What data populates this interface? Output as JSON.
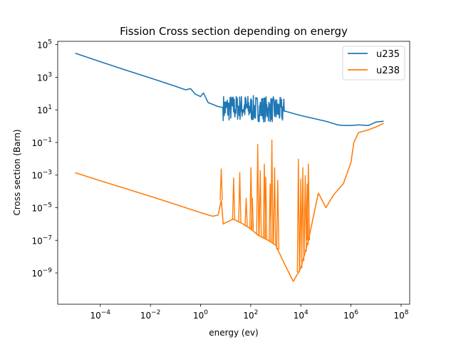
{
  "chart_data": {
    "type": "line",
    "title": "Fission Cross section depending on energy",
    "xlabel": "energy (ev)",
    "ylabel": "Cross section (Barn)",
    "xscale": "log",
    "yscale": "log",
    "xlim": [
      2e-06,
      220000000.0
    ],
    "ylim": [
      1.2e-11,
      160000.0
    ],
    "x_ticks": [
      {
        "value": 0.0001,
        "base": "10",
        "exp": "−4"
      },
      {
        "value": 0.01,
        "base": "10",
        "exp": "−2"
      },
      {
        "value": 1.0,
        "base": "10",
        "exp": "0"
      },
      {
        "value": 100.0,
        "base": "10",
        "exp": "2"
      },
      {
        "value": 10000.0,
        "base": "10",
        "exp": "4"
      },
      {
        "value": 1000000.0,
        "base": "10",
        "exp": "6"
      },
      {
        "value": 100000000.0,
        "base": "10",
        "exp": "8"
      }
    ],
    "y_ticks": [
      {
        "value": 1e-09,
        "base": "10",
        "exp": "−9"
      },
      {
        "value": 1e-07,
        "base": "10",
        "exp": "−7"
      },
      {
        "value": 1e-05,
        "base": "10",
        "exp": "−5"
      },
      {
        "value": 0.001,
        "base": "10",
        "exp": "−3"
      },
      {
        "value": 0.1,
        "base": "10",
        "exp": "−1"
      },
      {
        "value": 10.0,
        "base": "10",
        "exp": "1"
      },
      {
        "value": 1000.0,
        "base": "10",
        "exp": "3"
      },
      {
        "value": 100000.0,
        "base": "10",
        "exp": "5"
      }
    ],
    "legend_position": "top-right",
    "series": [
      {
        "name": "u235",
        "color": "#1f77b4",
        "x": [
          1e-05,
          0.0001,
          0.001,
          0.01,
          0.1,
          0.25,
          0.4,
          0.6,
          1.0,
          1.3,
          2,
          3,
          5,
          8,
          10,
          20,
          50,
          100,
          200,
          500,
          1000,
          2000,
          5000,
          10000.0,
          100000.0,
          300000.0,
          500000.0,
          1000000.0,
          2000000.0,
          5000000.0,
          10000000.0,
          20000000.0
        ],
        "y": [
          30000,
          9000,
          2800,
          900,
          280,
          170,
          200,
          95,
          65,
          110,
          28,
          22,
          16,
          14,
          12,
          13,
          14,
          12,
          12,
          11,
          10,
          9,
          6,
          4.5,
          2,
          1.2,
          1.1,
          1.1,
          1.2,
          1.1,
          1.8,
          2.0
        ]
      },
      {
        "name": "u238",
        "color": "#ff7f0e",
        "x": [
          1e-05,
          0.0001,
          0.001,
          0.01,
          0.1,
          1,
          3,
          5,
          6.7,
          8,
          10,
          20,
          50,
          100,
          200,
          500,
          1000,
          2000,
          5000,
          10000.0,
          20000.0,
          50000.0,
          100000.0,
          200000.0,
          500000.0,
          1000000.0,
          1300000.0,
          2000000.0,
          5000000.0,
          10000000.0,
          20000000.0
        ],
        "y": [
          0.0014,
          0.00045,
          0.00015,
          5e-05,
          1.6e-05,
          5e-06,
          3e-06,
          3.5e-06,
          3e-05,
          1e-06,
          1.2e-06,
          2e-06,
          1e-06,
          5e-07,
          2e-07,
          1e-07,
          5e-08,
          5e-09,
          3e-10,
          2e-09,
          1e-07,
          8e-05,
          1e-05,
          6e-05,
          0.0003,
          0.006,
          0.1,
          0.4,
          0.6,
          0.9,
          1.5
        ]
      }
    ],
    "resonance_spikes": [
      {
        "series": "u238",
        "x": 6.67,
        "y": 0.0025
      },
      {
        "series": "u238",
        "x": 20.9,
        "y": 0.0007
      },
      {
        "series": "u238",
        "x": 36.7,
        "y": 0.0015
      },
      {
        "series": "u238",
        "x": 66,
        "y": 4e-05
      },
      {
        "series": "u238",
        "x": 102,
        "y": 0.003
      },
      {
        "series": "u238",
        "x": 116,
        "y": 4e-05
      },
      {
        "series": "u238",
        "x": 190,
        "y": 0.08
      },
      {
        "series": "u238",
        "x": 240,
        "y": 0.002
      },
      {
        "series": "u238",
        "x": 350,
        "y": 0.005
      },
      {
        "series": "u238",
        "x": 400,
        "y": 0.0008
      },
      {
        "series": "u238",
        "x": 600,
        "y": 0.0003
      },
      {
        "series": "u238",
        "x": 700,
        "y": 0.15
      },
      {
        "series": "u238",
        "x": 900,
        "y": 0.003
      },
      {
        "series": "u238",
        "x": 1200,
        "y": 0.0005
      },
      {
        "series": "u238",
        "x": 8000,
        "y": 0.01
      },
      {
        "series": "u238",
        "x": 10000,
        "y": 0.0006
      },
      {
        "series": "u238",
        "x": 12000,
        "y": 0.003
      },
      {
        "series": "u238",
        "x": 15000,
        "y": 0.001
      },
      {
        "series": "u238",
        "x": 18000,
        "y": 0.0003
      },
      {
        "series": "u238",
        "x": 20000,
        "y": 0.005
      }
    ]
  }
}
